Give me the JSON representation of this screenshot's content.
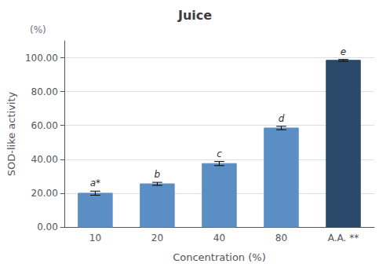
{
  "chart_data": {
    "type": "bar",
    "title": "Juice",
    "xlabel": "Concentration (%)",
    "ylabel": "SOD-like activity",
    "categories": [
      "10",
      "20",
      "40",
      "80",
      "A.A. **"
    ],
    "values": [
      20.0,
      25.5,
      37.5,
      58.5,
      98.5
    ],
    "errors": [
      1.2,
      0.9,
      1.2,
      1.0,
      0.5
    ],
    "colors": [
      "#5b8ec4",
      "#5b8ec4",
      "#5b8ec4",
      "#5b8ec4",
      "#2b4a6b"
    ],
    "annotations": [
      {
        "text": "a*",
        "category": "10"
      },
      {
        "text": "b",
        "category": "20"
      },
      {
        "text": "c",
        "category": "40"
      },
      {
        "text": "d",
        "category": "80"
      },
      {
        "text": "e",
        "category": "A.A. **"
      },
      {
        "text": "(%)"
      }
    ],
    "ylim": [
      0,
      110
    ],
    "yticks": [
      {
        "value": 0,
        "label": "0.00"
      },
      {
        "value": 20,
        "label": "20.00"
      },
      {
        "value": 40,
        "label": "40.00"
      },
      {
        "value": 60,
        "label": "60.00"
      },
      {
        "value": 80,
        "label": "80.00"
      },
      {
        "value": 100,
        "label": "100.00"
      }
    ],
    "grid": true
  }
}
